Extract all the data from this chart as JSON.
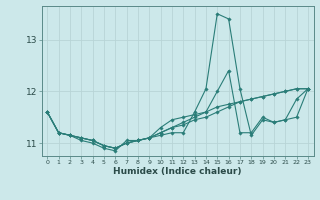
{
  "xlabel": "Humidex (Indice chaleur)",
  "ylabel": "",
  "background_color": "#cce8ea",
  "grid_color": "#b8d4d6",
  "line_color": "#2a7d78",
  "xlim": [
    -0.5,
    23.5
  ],
  "ylim": [
    10.75,
    13.65
  ],
  "yticks": [
    11,
    12,
    13
  ],
  "xticks": [
    0,
    1,
    2,
    3,
    4,
    5,
    6,
    7,
    8,
    9,
    10,
    11,
    12,
    13,
    14,
    15,
    16,
    17,
    18,
    19,
    20,
    21,
    22,
    23
  ],
  "series": [
    [
      11.6,
      11.2,
      11.15,
      11.05,
      11.0,
      10.9,
      10.85,
      11.05,
      11.05,
      11.1,
      11.15,
      11.2,
      11.2,
      11.6,
      12.05,
      13.5,
      13.4,
      12.05,
      11.15,
      11.45,
      11.4,
      11.45,
      11.5,
      12.05
    ],
    [
      11.6,
      11.2,
      11.15,
      11.1,
      11.05,
      10.95,
      10.9,
      11.0,
      11.05,
      11.1,
      11.2,
      11.3,
      11.35,
      11.45,
      11.5,
      11.6,
      11.7,
      11.8,
      11.85,
      11.9,
      11.95,
      12.0,
      12.05,
      12.05
    ],
    [
      11.6,
      11.2,
      11.15,
      11.1,
      11.05,
      10.95,
      10.9,
      11.0,
      11.05,
      11.1,
      11.3,
      11.45,
      11.5,
      11.55,
      11.6,
      11.7,
      11.75,
      11.8,
      11.85,
      11.9,
      11.95,
      12.0,
      12.05,
      12.05
    ],
    [
      11.6,
      11.2,
      11.15,
      11.1,
      11.05,
      10.95,
      10.9,
      11.0,
      11.05,
      11.1,
      11.2,
      11.3,
      11.4,
      11.5,
      11.6,
      12.0,
      12.4,
      11.2,
      11.2,
      11.5,
      11.4,
      11.45,
      11.85,
      12.05
    ]
  ]
}
